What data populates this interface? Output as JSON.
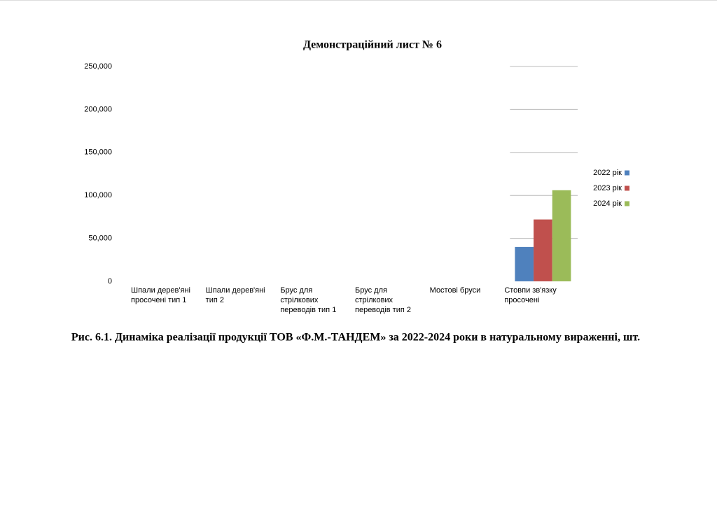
{
  "chart_data": {
    "type": "bar",
    "title": "Демонстраційний лист № 6",
    "caption": "Рис. 6.1. Динаміка реалізації продукції ТОВ «Ф.М.-ТАНДЕМ» за 2022-2024 роки в натуральному вираженні, шт.",
    "categories": [
      "Шпали дерев'яні просочені тип 1",
      "Шпали дерев'яні тип 2",
      "Брус для стрілкових переводів тип 1",
      "Брус для стрілкових переводів тип 2",
      "Мостові бруси",
      "Стовпи зв'язку просочені"
    ],
    "series": [
      {
        "name": "2022 рік",
        "color": "#4f81bd",
        "values": [
          0,
          0,
          0,
          0,
          0,
          40000
        ]
      },
      {
        "name": "2023 рік",
        "color": "#c0504d",
        "values": [
          0,
          0,
          0,
          0,
          0,
          72000
        ]
      },
      {
        "name": "2024 рік",
        "color": "#9bbb59",
        "values": [
          0,
          0,
          0,
          0,
          0,
          106000
        ]
      }
    ],
    "ylim": [
      0,
      250000
    ],
    "yticks": [
      {
        "value": 0,
        "label": "0"
      },
      {
        "value": 50000,
        "label": "50,000"
      },
      {
        "value": 100000,
        "label": "100,000"
      },
      {
        "value": 150000,
        "label": "150,000"
      },
      {
        "value": 200000,
        "label": "200,000"
      },
      {
        "value": 250000,
        "label": "250,000"
      }
    ],
    "grid": true,
    "legend": "right"
  }
}
